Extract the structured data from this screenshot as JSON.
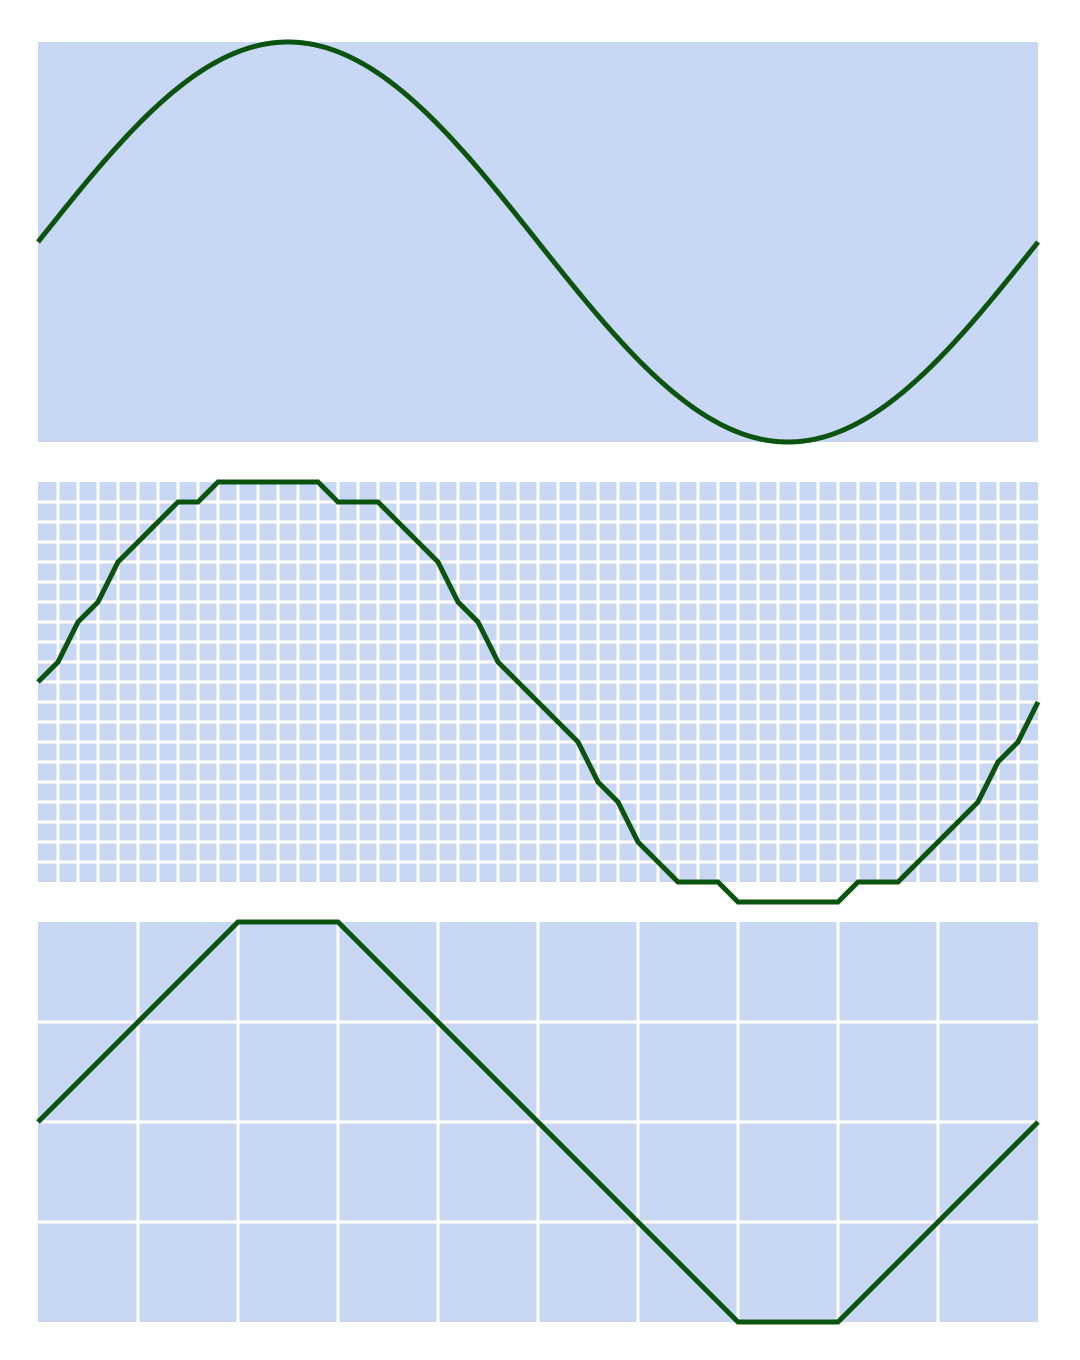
{
  "colors": {
    "panel_bg": "#c8d7f3",
    "grid_line": "#ffffff",
    "curve": "#0b5410",
    "page_bg": "#ffffff"
  },
  "panels": [
    {
      "id": "smooth",
      "description_kind": "continuous sine curve",
      "grid_divisions": 0,
      "curve": {
        "kind": "sine",
        "cycles": 1
      }
    },
    {
      "id": "fine",
      "description_kind": "sine sampled on fine grid",
      "grid_divisions": 50,
      "curve": {
        "kind": "polyline",
        "values": [
          0,
          1,
          3,
          4,
          6,
          7,
          8,
          9,
          9,
          10,
          10,
          10,
          10,
          10,
          10,
          9,
          9,
          9,
          8,
          7,
          6,
          4,
          3,
          1,
          0,
          -1,
          -2,
          -3,
          -5,
          -6,
          -8,
          -9,
          -10,
          -10,
          -10,
          -11,
          -11,
          -11,
          -11,
          -11,
          -11,
          -10,
          -10,
          -10,
          -9,
          -8,
          -7,
          -6,
          -4,
          -3,
          -1
        ]
      }
    },
    {
      "id": "coarse",
      "description_kind": "sine sampled on coarse grid",
      "grid_divisions": 10,
      "curve": {
        "kind": "polyline",
        "values": [
          0,
          1,
          2,
          2,
          1,
          0,
          -1,
          -2,
          -2,
          -1,
          0
        ]
      }
    }
  ]
}
